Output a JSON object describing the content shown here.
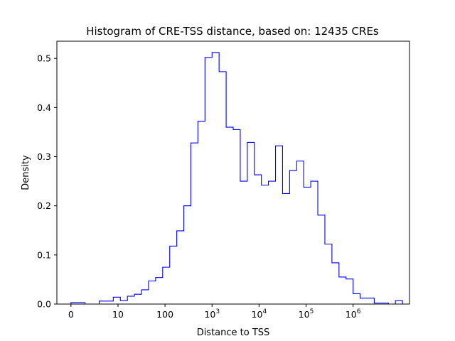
{
  "chart_data": {
    "type": "bar",
    "title": "Histogram of CRE-TSS distance, based on: 12435 CREs",
    "xlabel": "Distance to TSS",
    "ylabel": "Density",
    "x_scale": "symlog",
    "xlim_log10": [
      -0.3,
      7.2
    ],
    "ylim": [
      0,
      0.535
    ],
    "grid": false,
    "legend": "none",
    "series_color": "#0000ff",
    "x_ticks": [
      {
        "value": 0,
        "label": "0",
        "sup": ""
      },
      {
        "value": 10,
        "label": "10",
        "sup": ""
      },
      {
        "value": 100,
        "label": "100",
        "sup": ""
      },
      {
        "value": 1000,
        "label": "10",
        "sup": "3"
      },
      {
        "value": 10000,
        "label": "10",
        "sup": "4"
      },
      {
        "value": 100000,
        "label": "10",
        "sup": "5"
      },
      {
        "value": 1000000,
        "label": "10",
        "sup": "6"
      }
    ],
    "y_ticks": [
      {
        "value": 0.0,
        "label": "0.0"
      },
      {
        "value": 0.1,
        "label": "0.1"
      },
      {
        "value": 0.2,
        "label": "0.2"
      },
      {
        "value": 0.3,
        "label": "0.3"
      },
      {
        "value": 0.4,
        "label": "0.4"
      },
      {
        "value": 0.5,
        "label": "0.5"
      }
    ],
    "bin_edges_log10": [
      0,
      0.3,
      0.6,
      0.9,
      1.05,
      1.2,
      1.35,
      1.5,
      1.65,
      1.8,
      1.95,
      2.1,
      2.25,
      2.4,
      2.55,
      2.7,
      2.85,
      3.0,
      3.15,
      3.3,
      3.45,
      3.6,
      3.75,
      3.9,
      4.05,
      4.2,
      4.35,
      4.5,
      4.65,
      4.8,
      4.95,
      5.1,
      5.25,
      5.4,
      5.55,
      5.7,
      5.85,
      6.0,
      6.15,
      6.45,
      6.75,
      6.9,
      7.05
    ],
    "values": [
      0.003,
      0.0,
      0.006,
      0.014,
      0.007,
      0.016,
      0.02,
      0.029,
      0.047,
      0.054,
      0.075,
      0.118,
      0.149,
      0.2,
      0.328,
      0.372,
      0.502,
      0.512,
      0.473,
      0.36,
      0.355,
      0.25,
      0.329,
      0.263,
      0.242,
      0.25,
      0.322,
      0.225,
      0.272,
      0.291,
      0.238,
      0.25,
      0.181,
      0.122,
      0.084,
      0.055,
      0.051,
      0.021,
      0.012,
      0.002,
      0.0,
      0.007
    ]
  }
}
